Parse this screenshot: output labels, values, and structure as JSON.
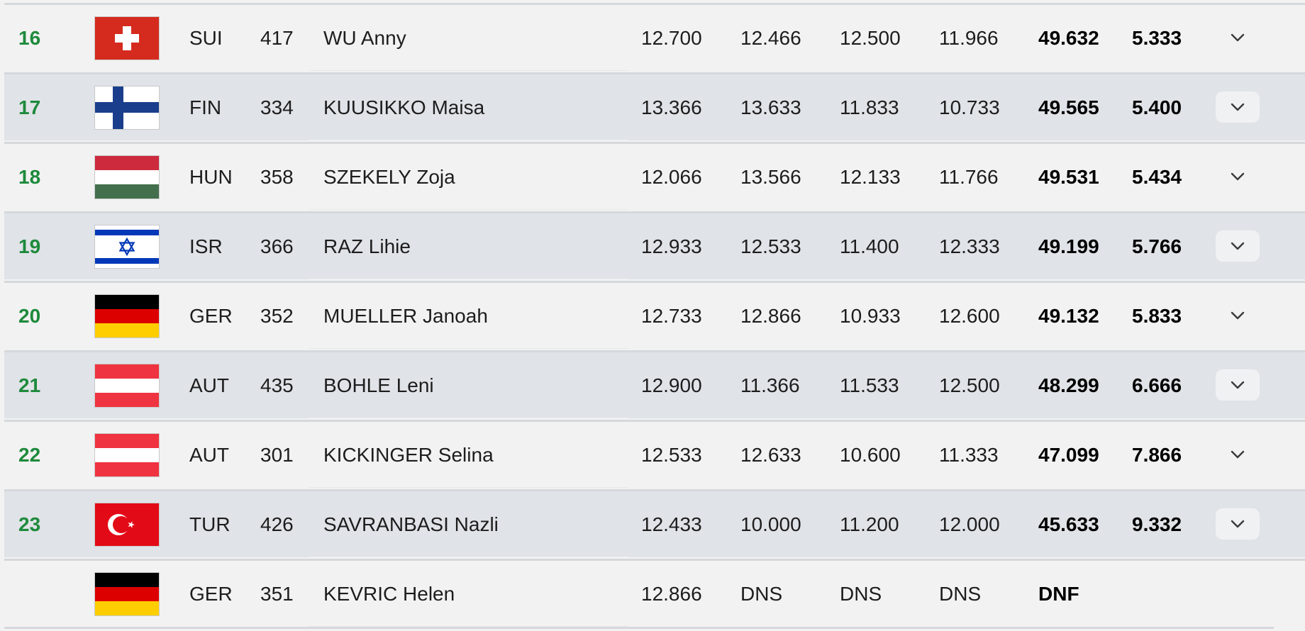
{
  "results": {
    "rows": [
      {
        "rank": "16",
        "flag": "SUI",
        "nation": "SUI",
        "bib": "417",
        "name": "WU Anny",
        "scores": [
          "12.700",
          "12.466",
          "12.500",
          "11.966"
        ],
        "total": "49.632",
        "behind": "5.333",
        "expand_icon": "chevron-down-icon",
        "has_expand": true
      },
      {
        "rank": "17",
        "flag": "FIN",
        "nation": "FIN",
        "bib": "334",
        "name": "KUUSIKKO Maisa",
        "scores": [
          "13.366",
          "13.633",
          "11.833",
          "10.733"
        ],
        "total": "49.565",
        "behind": "5.400",
        "expand_icon": "chevron-down-icon",
        "has_expand": true
      },
      {
        "rank": "18",
        "flag": "HUN",
        "nation": "HUN",
        "bib": "358",
        "name": "SZEKELY Zoja",
        "scores": [
          "12.066",
          "13.566",
          "12.133",
          "11.766"
        ],
        "total": "49.531",
        "behind": "5.434",
        "expand_icon": "chevron-down-icon",
        "has_expand": true
      },
      {
        "rank": "19",
        "flag": "ISR",
        "nation": "ISR",
        "bib": "366",
        "name": "RAZ Lihie",
        "scores": [
          "12.933",
          "12.533",
          "11.400",
          "12.333"
        ],
        "total": "49.199",
        "behind": "5.766",
        "expand_icon": "chevron-down-icon",
        "has_expand": true
      },
      {
        "rank": "20",
        "flag": "GER",
        "nation": "GER",
        "bib": "352",
        "name": "MUELLER Janoah",
        "scores": [
          "12.733",
          "12.866",
          "10.933",
          "12.600"
        ],
        "total": "49.132",
        "behind": "5.833",
        "expand_icon": "chevron-down-icon",
        "has_expand": true
      },
      {
        "rank": "21",
        "flag": "AUT",
        "nation": "AUT",
        "bib": "435",
        "name": "BOHLE Leni",
        "scores": [
          "12.900",
          "11.366",
          "11.533",
          "12.500"
        ],
        "total": "48.299",
        "behind": "6.666",
        "expand_icon": "chevron-down-icon",
        "has_expand": true
      },
      {
        "rank": "22",
        "flag": "AUT",
        "nation": "AUT",
        "bib": "301",
        "name": "KICKINGER Selina",
        "scores": [
          "12.533",
          "12.633",
          "10.600",
          "11.333"
        ],
        "total": "47.099",
        "behind": "7.866",
        "expand_icon": "chevron-down-icon",
        "has_expand": true
      },
      {
        "rank": "23",
        "flag": "TUR",
        "nation": "TUR",
        "bib": "426",
        "name": "SAVRANBASI Nazli",
        "scores": [
          "12.433",
          "10.000",
          "11.200",
          "12.000"
        ],
        "total": "45.633",
        "behind": "9.332",
        "expand_icon": "chevron-down-icon",
        "has_expand": true
      },
      {
        "rank": "",
        "flag": "GER",
        "nation": "GER",
        "bib": "351",
        "name": "KEVRIC Helen",
        "scores": [
          "12.866",
          "DNS",
          "DNS",
          "DNS"
        ],
        "total": "DNF",
        "behind": "",
        "expand_icon": "",
        "has_expand": false
      }
    ]
  },
  "colors": {
    "rank_green": "#1e8a3c",
    "row_light": "#f2f2f2",
    "row_dark": "#e0e3e7",
    "divider": "#d5d8dc",
    "flag_red": "#d52b1e",
    "flag_blue": "#1a3e8c",
    "flag_hungary_red": "#cd2a3e",
    "flag_hungary_green": "#436f4d",
    "flag_israel_blue": "#0038b8",
    "flag_austria_red": "#ef3340",
    "flag_turkey_red": "#e30a17",
    "flag_germany_gold": "#ffce00"
  }
}
